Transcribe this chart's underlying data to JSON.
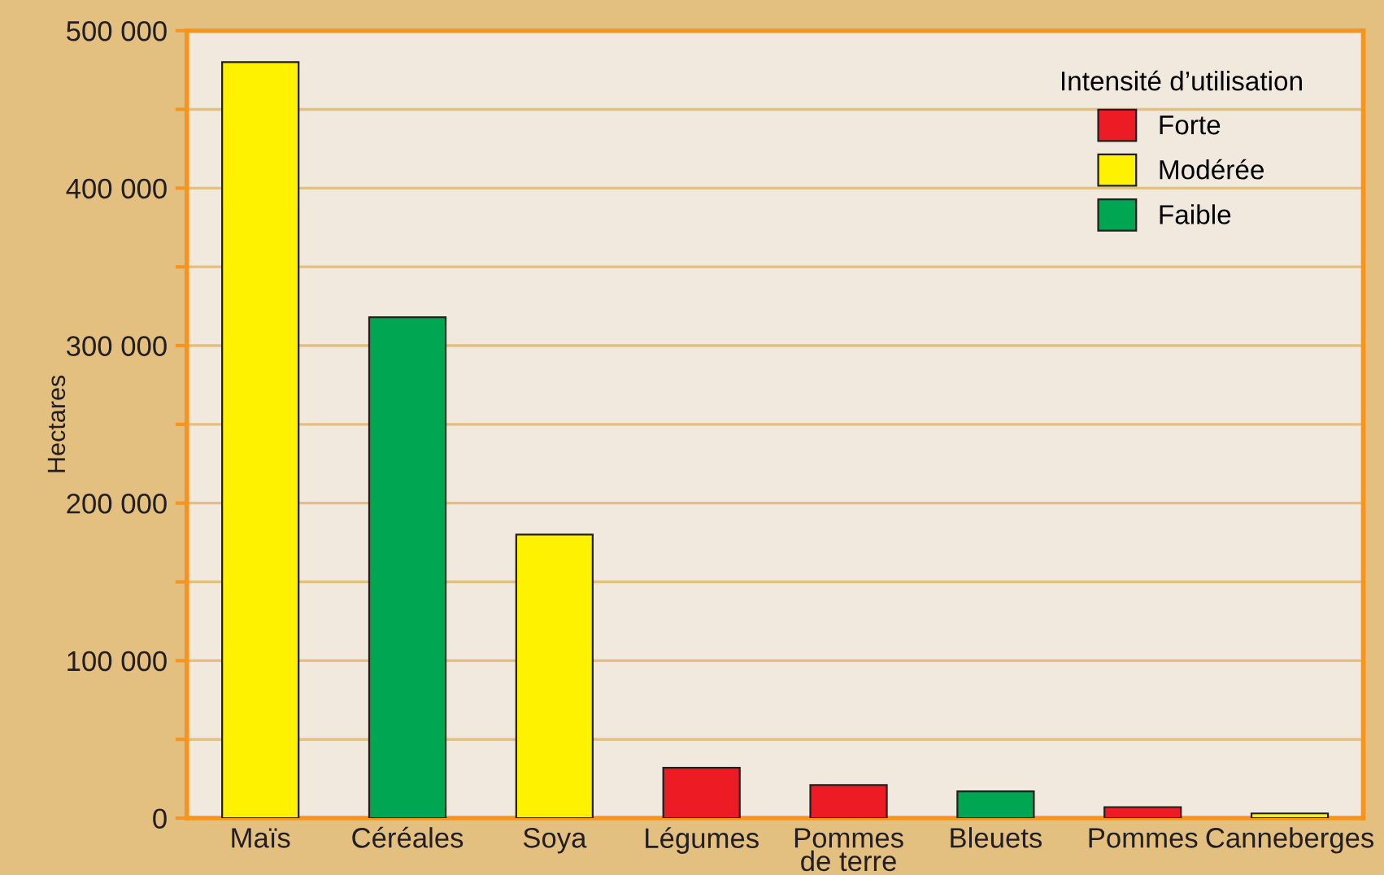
{
  "chart_data": {
    "type": "bar",
    "ylabel": "Hectares",
    "legend_title": "Intensité d’utilisation",
    "categories": [
      "Maïs",
      "Céréales",
      "Soya",
      "Légumes",
      "Pommes\nde terre",
      "Bleuets",
      "Pommes",
      "Canneberges"
    ],
    "series": [
      {
        "name": "Forte",
        "color": "#ed1c24",
        "values": [
          null,
          null,
          null,
          32000,
          21000,
          null,
          7000,
          null
        ]
      },
      {
        "name": "Modérée",
        "color": "#fff200",
        "values": [
          480000,
          null,
          180000,
          null,
          null,
          null,
          null,
          3000
        ]
      },
      {
        "name": "Faible",
        "color": "#00a651",
        "values": [
          null,
          318000,
          null,
          null,
          null,
          17000,
          null,
          null
        ]
      }
    ],
    "stacked": true,
    "ylim": [
      0,
      500000
    ],
    "yticks": [
      {
        "value": 0,
        "label": "0"
      },
      {
        "value": 50000,
        "label": null
      },
      {
        "value": 100000,
        "label": "100 000"
      },
      {
        "value": 150000,
        "label": null
      },
      {
        "value": 200000,
        "label": "200 000"
      },
      {
        "value": 250000,
        "label": null
      },
      {
        "value": 300000,
        "label": "300 000"
      },
      {
        "value": 350000,
        "label": null
      },
      {
        "value": 400000,
        "label": "400 000"
      },
      {
        "value": 450000,
        "label": null
      },
      {
        "value": 500000,
        "label": "500 000"
      }
    ],
    "grid": "y",
    "legend": "top right"
  }
}
